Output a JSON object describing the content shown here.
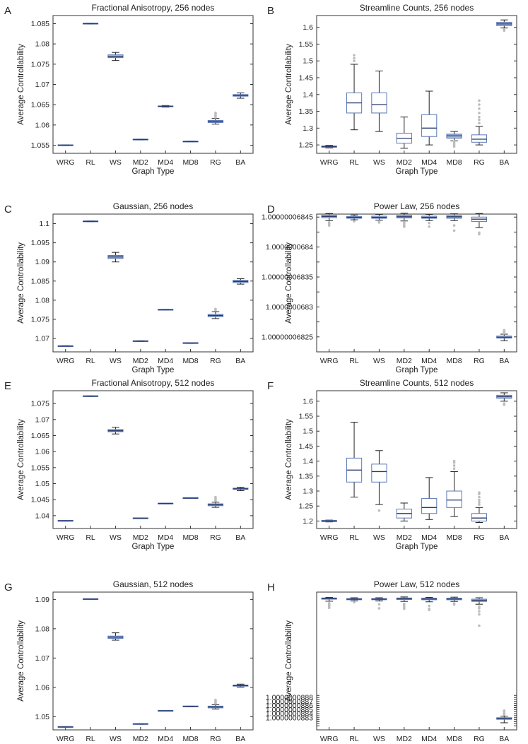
{
  "colors": {
    "box": "#5b78b5",
    "box_fill": "#a9bbde",
    "median": "#273a6b",
    "whisker": "#222222",
    "outlier": "#bdbdbd",
    "axis": "#333333"
  },
  "chart_data": [
    {
      "letter": "A",
      "type": "box",
      "title": "Fractional Anisotropy, 256 nodes",
      "xlabel": "Graph Type",
      "ylabel": "Average Controllability",
      "ylim": [
        1.053,
        1.087
      ],
      "yticks": [
        1.055,
        1.06,
        1.065,
        1.07,
        1.075,
        1.08,
        1.085
      ],
      "ytick_labels": [
        "1.055",
        "1.06",
        "1.065",
        "1.07",
        "1.075",
        "1.08",
        "1.085"
      ],
      "categories": [
        "WRG",
        "RL",
        "WS",
        "MD2",
        "MD4",
        "MD8",
        "RG",
        "BA"
      ],
      "boxes": [
        {
          "q1": 1.05495,
          "med": 1.055,
          "q3": 1.05505,
          "lo": 1.0549,
          "hi": 1.0551,
          "out": []
        },
        {
          "q1": 1.08495,
          "med": 1.085,
          "q3": 1.08505,
          "lo": 1.0849,
          "hi": 1.0851,
          "out": []
        },
        {
          "q1": 1.0766,
          "med": 1.0769,
          "q3": 1.0773,
          "lo": 1.0759,
          "hi": 1.0779,
          "out": []
        },
        {
          "q1": 1.05635,
          "med": 1.0564,
          "q3": 1.05645,
          "lo": 1.0563,
          "hi": 1.0565,
          "out": []
        },
        {
          "q1": 1.0645,
          "med": 1.0646,
          "q3": 1.0647,
          "lo": 1.0644,
          "hi": 1.0648,
          "out": []
        },
        {
          "q1": 1.05585,
          "med": 1.0559,
          "q3": 1.05595,
          "lo": 1.0558,
          "hi": 1.056,
          "out": []
        },
        {
          "q1": 1.0606,
          "med": 1.0609,
          "q3": 1.0611,
          "lo": 1.0602,
          "hi": 1.0616,
          "out": [
            1.0619,
            1.0622,
            1.0625,
            1.0628,
            1.063
          ]
        },
        {
          "q1": 1.0671,
          "med": 1.0673,
          "q3": 1.0675,
          "lo": 1.0666,
          "hi": 1.0679,
          "out": []
        }
      ]
    },
    {
      "letter": "B",
      "type": "box",
      "title": "Streamline Counts, 256 nodes",
      "xlabel": "Graph Type",
      "ylabel": "Average Controllability",
      "ylim": [
        1.225,
        1.635
      ],
      "yticks": [
        1.25,
        1.3,
        1.35,
        1.4,
        1.45,
        1.5,
        1.55,
        1.6
      ],
      "ytick_labels": [
        "1.25",
        "1.3",
        "1.35",
        "1.4",
        "1.45",
        "1.5",
        "1.55",
        "1.6"
      ],
      "categories": [
        "WRG",
        "RL",
        "WS",
        "MD2",
        "MD4",
        "MD8",
        "RG",
        "BA"
      ],
      "boxes": [
        {
          "q1": 1.243,
          "med": 1.245,
          "q3": 1.247,
          "lo": 1.241,
          "hi": 1.249,
          "out": []
        },
        {
          "q1": 1.345,
          "med": 1.375,
          "q3": 1.405,
          "lo": 1.295,
          "hi": 1.49,
          "out": [
            1.5,
            1.508,
            1.517
          ]
        },
        {
          "q1": 1.345,
          "med": 1.37,
          "q3": 1.405,
          "lo": 1.29,
          "hi": 1.47,
          "out": []
        },
        {
          "q1": 1.255,
          "med": 1.27,
          "q3": 1.285,
          "lo": 1.24,
          "hi": 1.333,
          "out": []
        },
        {
          "q1": 1.275,
          "med": 1.3,
          "q3": 1.34,
          "lo": 1.25,
          "hi": 1.41,
          "out": []
        },
        {
          "q1": 1.27,
          "med": 1.277,
          "q3": 1.282,
          "lo": 1.262,
          "hi": 1.29,
          "out": [
            1.245,
            1.25,
            1.255,
            1.26
          ]
        },
        {
          "q1": 1.258,
          "med": 1.267,
          "q3": 1.28,
          "lo": 1.25,
          "hi": 1.305,
          "out": [
            1.315,
            1.325,
            1.333,
            1.345,
            1.358,
            1.37,
            1.382
          ]
        },
        {
          "q1": 1.605,
          "med": 1.61,
          "q3": 1.615,
          "lo": 1.598,
          "hi": 1.622,
          "out": [
            1.59,
            1.593
          ]
        }
      ]
    },
    {
      "letter": "C",
      "type": "box",
      "title": "Gaussian, 256 nodes",
      "xlabel": "Graph Type",
      "ylabel": "Average Controllability",
      "ylim": [
        1.0665,
        1.1025
      ],
      "yticks": [
        1.07,
        1.075,
        1.08,
        1.085,
        1.09,
        1.095,
        1.1
      ],
      "ytick_labels": [
        "1.07",
        "1.075",
        "1.08",
        "1.085",
        "1.09",
        "1.095",
        "1.1"
      ],
      "categories": [
        "WRG",
        "RL",
        "WS",
        "MD2",
        "MD4",
        "MD8",
        "RG",
        "BA"
      ],
      "boxes": [
        {
          "q1": 1.06795,
          "med": 1.068,
          "q3": 1.06805,
          "lo": 1.0679,
          "hi": 1.0681,
          "out": []
        },
        {
          "q1": 1.10055,
          "med": 1.1006,
          "q3": 1.10065,
          "lo": 1.1005,
          "hi": 1.1007,
          "out": []
        },
        {
          "q1": 1.0909,
          "med": 1.0913,
          "q3": 1.0917,
          "lo": 1.09,
          "hi": 1.0925,
          "out": []
        },
        {
          "q1": 1.06925,
          "med": 1.0693,
          "q3": 1.06935,
          "lo": 1.0692,
          "hi": 1.0694,
          "out": []
        },
        {
          "q1": 1.07745,
          "med": 1.0775,
          "q3": 1.07755,
          "lo": 1.0774,
          "hi": 1.0776,
          "out": []
        },
        {
          "q1": 1.06875,
          "med": 1.0688,
          "q3": 1.06885,
          "lo": 1.0687,
          "hi": 1.0689,
          "out": []
        },
        {
          "q1": 1.0757,
          "med": 1.076,
          "q3": 1.0763,
          "lo": 1.0752,
          "hi": 1.077,
          "out": [
            1.0774,
            1.0777
          ]
        },
        {
          "q1": 1.0846,
          "med": 1.0849,
          "q3": 1.0852,
          "lo": 1.0842,
          "hi": 1.0856,
          "out": []
        }
      ]
    },
    {
      "letter": "D",
      "type": "box",
      "title": "Power Law, 256 nodes",
      "xlabel": "Graph Type",
      "ylabel": "Average Controllability",
      "ylim": [
        0.82,
        0.866
      ],
      "tick_prefix": "1.0000000",
      "yticks": [
        0.825,
        0.83,
        0.835,
        0.84,
        0.845,
        0.85,
        0.855,
        0.86,
        0.865
      ],
      "ytick_labels": [
        "1.00000006825",
        "",
        "1.0000000683",
        "",
        "1.00000006835",
        "",
        "1.0000000684",
        "",
        "1.00000006845"
      ],
      "categories": [
        "WRG",
        "RL",
        "WS",
        "MD2",
        "MD4",
        "MD8",
        "RG",
        "BA"
      ],
      "boxes": [
        {
          "q1": 0.8648,
          "med": 0.8652,
          "q3": 0.8656,
          "lo": 0.8638,
          "hi": 0.8662,
          "out": [
            0.8622,
            0.8627,
            0.8632
          ]
        },
        {
          "q1": 0.8646,
          "med": 0.8649,
          "q3": 0.8652,
          "lo": 0.8641,
          "hi": 0.8657,
          "out": [
            0.8636
          ]
        },
        {
          "q1": 0.8646,
          "med": 0.8649,
          "q3": 0.8653,
          "lo": 0.864,
          "hi": 0.8659,
          "out": [
            0.8632,
            0.8636
          ]
        },
        {
          "q1": 0.8647,
          "med": 0.8651,
          "q3": 0.8656,
          "lo": 0.8637,
          "hi": 0.8663,
          "out": [
            0.8618,
            0.8622,
            0.8628,
            0.8633
          ]
        },
        {
          "q1": 0.8646,
          "med": 0.8649,
          "q3": 0.8653,
          "lo": 0.8638,
          "hi": 0.8659,
          "out": [
            0.8618,
            0.863
          ]
        },
        {
          "q1": 0.8646,
          "med": 0.8651,
          "q3": 0.8655,
          "lo": 0.8638,
          "hi": 0.8661,
          "out": [
            0.8605,
            0.8622
          ]
        },
        {
          "q1": 0.8635,
          "med": 0.8643,
          "q3": 0.865,
          "lo": 0.8615,
          "hi": 0.8662,
          "out": [
            0.8593,
            0.8598
          ]
        },
        {
          "q1": 0.8246,
          "med": 0.8249,
          "q3": 0.8253,
          "lo": 0.8237,
          "hi": 0.8259,
          "out": [
            0.8262,
            0.8265,
            0.8268,
            0.8272
          ]
        }
      ]
    },
    {
      "letter": "E",
      "type": "box",
      "title": "Fractional Anisotropy, 512 nodes",
      "xlabel": "Graph Type",
      "ylabel": "Average Controllability",
      "ylim": [
        1.036,
        1.079
      ],
      "yticks": [
        1.04,
        1.045,
        1.05,
        1.055,
        1.06,
        1.065,
        1.07,
        1.075
      ],
      "ytick_labels": [
        "1.04",
        "1.045",
        "1.05",
        "1.055",
        "1.06",
        "1.065",
        "1.07",
        "1.075"
      ],
      "categories": [
        "WRG",
        "RL",
        "WS",
        "MD2",
        "MD4",
        "MD8",
        "RG",
        "BA"
      ],
      "boxes": [
        {
          "q1": 1.03835,
          "med": 1.0384,
          "q3": 1.03845,
          "lo": 1.0383,
          "hi": 1.0385,
          "out": []
        },
        {
          "q1": 1.07725,
          "med": 1.0773,
          "q3": 1.07735,
          "lo": 1.0772,
          "hi": 1.0774,
          "out": []
        },
        {
          "q1": 1.0662,
          "med": 1.0665,
          "q3": 1.0669,
          "lo": 1.0655,
          "hi": 1.0676,
          "out": []
        },
        {
          "q1": 1.03915,
          "med": 1.0392,
          "q3": 1.03925,
          "lo": 1.0391,
          "hi": 1.0393,
          "out": []
        },
        {
          "q1": 1.04375,
          "med": 1.0438,
          "q3": 1.04385,
          "lo": 1.0437,
          "hi": 1.0439,
          "out": []
        },
        {
          "q1": 1.04545,
          "med": 1.0455,
          "q3": 1.04555,
          "lo": 1.0454,
          "hi": 1.0456,
          "out": []
        },
        {
          "q1": 1.0431,
          "med": 1.0434,
          "q3": 1.0437,
          "lo": 1.0426,
          "hi": 1.0442,
          "out": [
            1.0446,
            1.045,
            1.0454,
            1.0458
          ]
        },
        {
          "q1": 1.0482,
          "med": 1.0484,
          "q3": 1.0486,
          "lo": 1.0478,
          "hi": 1.0489,
          "out": []
        }
      ]
    },
    {
      "letter": "F",
      "type": "box",
      "title": "Streamline Counts, 512 nodes",
      "xlabel": "Graph Type",
      "ylabel": "Average Controllability",
      "ylim": [
        1.175,
        1.635
      ],
      "yticks": [
        1.2,
        1.25,
        1.3,
        1.35,
        1.4,
        1.45,
        1.5,
        1.55,
        1.6
      ],
      "ytick_labels": [
        "1.2",
        "1.25",
        "1.3",
        "1.35",
        "1.4",
        "1.45",
        "1.5",
        "1.55",
        "1.6"
      ],
      "categories": [
        "WRG",
        "RL",
        "WS",
        "MD2",
        "MD4",
        "MD8",
        "RG",
        "BA"
      ],
      "boxes": [
        {
          "q1": 1.198,
          "med": 1.2,
          "q3": 1.202,
          "lo": 1.197,
          "hi": 1.203,
          "out": []
        },
        {
          "q1": 1.33,
          "med": 1.37,
          "q3": 1.41,
          "lo": 1.28,
          "hi": 1.53,
          "out": []
        },
        {
          "q1": 1.33,
          "med": 1.365,
          "q3": 1.39,
          "lo": 1.255,
          "hi": 1.435,
          "out": [
            1.235
          ]
        },
        {
          "q1": 1.21,
          "med": 1.225,
          "q3": 1.24,
          "lo": 1.2,
          "hi": 1.26,
          "out": []
        },
        {
          "q1": 1.225,
          "med": 1.245,
          "q3": 1.275,
          "lo": 1.205,
          "hi": 1.345,
          "out": []
        },
        {
          "q1": 1.245,
          "med": 1.27,
          "q3": 1.3,
          "lo": 1.215,
          "hi": 1.365,
          "out": [
            1.375,
            1.385,
            1.395,
            1.4
          ]
        },
        {
          "q1": 1.2,
          "med": 1.21,
          "q3": 1.225,
          "lo": 1.195,
          "hi": 1.245,
          "out": [
            1.255,
            1.262,
            1.27,
            1.28,
            1.29,
            1.295
          ]
        },
        {
          "q1": 1.61,
          "med": 1.615,
          "q3": 1.62,
          "lo": 1.6,
          "hi": 1.628,
          "out": [
            1.588,
            1.592
          ]
        }
      ]
    },
    {
      "letter": "G",
      "type": "box",
      "title": "Gaussian, 512 nodes",
      "xlabel": "Graph Type",
      "ylabel": "Average Controllability",
      "ylim": [
        1.0455,
        1.0925
      ],
      "yticks": [
        1.05,
        1.06,
        1.07,
        1.08,
        1.09
      ],
      "ytick_labels": [
        "1.05",
        "1.06",
        "1.07",
        "1.08",
        "1.09"
      ],
      "categories": [
        "WRG",
        "RL",
        "WS",
        "MD2",
        "MD4",
        "MD8",
        "RG",
        "BA"
      ],
      "boxes": [
        {
          "q1": 1.04645,
          "med": 1.0465,
          "q3": 1.04655,
          "lo": 1.0464,
          "hi": 1.0466,
          "out": []
        },
        {
          "q1": 1.09005,
          "med": 1.0901,
          "q3": 1.09015,
          "lo": 1.09,
          "hi": 1.0902,
          "out": []
        },
        {
          "q1": 1.0767,
          "med": 1.0771,
          "q3": 1.0775,
          "lo": 1.0761,
          "hi": 1.0786,
          "out": []
        },
        {
          "q1": 1.04745,
          "med": 1.0475,
          "q3": 1.04755,
          "lo": 1.0474,
          "hi": 1.0476,
          "out": []
        },
        {
          "q1": 1.05195,
          "med": 1.052,
          "q3": 1.05205,
          "lo": 1.0519,
          "hi": 1.0521,
          "out": []
        },
        {
          "q1": 1.05345,
          "med": 1.0535,
          "q3": 1.05355,
          "lo": 1.0534,
          "hi": 1.0536,
          "out": []
        },
        {
          "q1": 1.053,
          "med": 1.0533,
          "q3": 1.0536,
          "lo": 1.0526,
          "hi": 1.0541,
          "out": [
            1.0545,
            1.0549,
            1.0553,
            1.0557
          ]
        },
        {
          "q1": 1.0604,
          "med": 1.0606,
          "q3": 1.0608,
          "lo": 1.0601,
          "hi": 1.0611,
          "out": []
        }
      ]
    },
    {
      "letter": "H",
      "type": "box",
      "title": "Power Law, 512 nodes",
      "xlabel": "Graph Type",
      "ylabel": "Average Controllability",
      "ylim": [
        0.8821,
        0.8889
      ],
      "tick_prefix": "1.0000000",
      "yticks": [
        0.8823,
        0.8824,
        0.8825,
        0.8826,
        0.8827,
        0.8828,
        0.8829,
        0.883,
        0.8831,
        0.8832,
        0.8833,
        0.8834,
        0.8835,
        0.8836,
        0.8837,
        0.8838
      ],
      "ytick_labels": [
        "",
        "",
        "",
        "",
        "1.0000000883",
        "",
        "1.0000000884",
        "",
        "1.0000000885",
        "",
        "1.0000000886",
        "",
        "1.0000000887",
        "",
        "1.0000000888",
        ""
      ],
      "categories": [
        "WRG",
        "RL",
        "WS",
        "MD2",
        "MD4",
        "MD8",
        "RG",
        "BA"
      ],
      "boxes": [
        {
          "q1": 0.88855,
          "med": 0.88858,
          "q3": 0.88861,
          "lo": 0.88845,
          "hi": 0.88864,
          "out": [
            0.88812,
            0.88818,
            0.8882,
            0.88826,
            0.8883,
            0.88835
          ]
        },
        {
          "q1": 0.88852,
          "med": 0.88855,
          "q3": 0.88858,
          "lo": 0.88846,
          "hi": 0.88862,
          "out": [
            0.8884
          ]
        },
        {
          "q1": 0.88852,
          "med": 0.88855,
          "q3": 0.88858,
          "lo": 0.88846,
          "hi": 0.88862,
          "out": [
            0.8881,
            0.8883
          ]
        },
        {
          "q1": 0.88853,
          "med": 0.88857,
          "q3": 0.88861,
          "lo": 0.88844,
          "hi": 0.88866,
          "out": [
            0.88808,
            0.88815,
            0.88823,
            0.88832
          ]
        },
        {
          "q1": 0.88852,
          "med": 0.88856,
          "q3": 0.8886,
          "lo": 0.88842,
          "hi": 0.88864,
          "out": [
            0.88802,
            0.88808,
            0.88822
          ]
        },
        {
          "q1": 0.88852,
          "med": 0.88856,
          "q3": 0.8886,
          "lo": 0.88844,
          "hi": 0.88865,
          "out": [
            0.88828,
            0.88834
          ]
        },
        {
          "q1": 0.88844,
          "med": 0.88849,
          "q3": 0.88855,
          "lo": 0.8883,
          "hi": 0.88862,
          "out": [
            0.88724,
            0.8878,
            0.88795,
            0.8881,
            0.88818
          ]
        },
        {
          "q1": 0.88262,
          "med": 0.88266,
          "q3": 0.8827,
          "lo": 0.88245,
          "hi": 0.88278,
          "out": [
            0.88285,
            0.88292,
            0.883,
            0.88305
          ]
        }
      ]
    }
  ]
}
